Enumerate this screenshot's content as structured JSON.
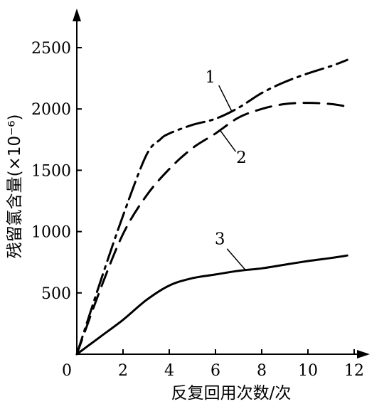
{
  "chart_data": {
    "type": "line",
    "title": "",
    "xlabel": "反复回用次数/次",
    "ylabel": "残留氯含量(×10⁻⁶)",
    "xlim": [
      0,
      13
    ],
    "ylim": [
      0,
      2800
    ],
    "x_ticks": [
      0,
      2,
      4,
      6,
      8,
      10,
      12
    ],
    "x_tick_labels": [
      "0",
      "2",
      "4",
      "6",
      "8",
      "10",
      "12"
    ],
    "y_ticks": [
      500,
      1000,
      1500,
      2000,
      2500
    ],
    "y_tick_labels": [
      "500",
      "1000",
      "1500",
      "2000",
      "2500"
    ],
    "grid": false,
    "legend": "none",
    "series": [
      {
        "name": "1",
        "style": "dash-dot",
        "x": [
          0,
          1,
          2,
          3,
          3.6,
          4,
          5,
          6,
          7,
          8,
          9,
          10,
          11,
          11.7
        ],
        "y": [
          0,
          580,
          1130,
          1620,
          1750,
          1800,
          1870,
          1920,
          2010,
          2130,
          2220,
          2290,
          2350,
          2400
        ]
      },
      {
        "name": "2",
        "style": "dashed",
        "x": [
          0,
          1,
          2,
          3,
          4,
          5,
          6,
          7,
          8,
          9,
          10,
          11,
          11.7
        ],
        "y": [
          0,
          520,
          980,
          1290,
          1510,
          1680,
          1800,
          1930,
          2000,
          2040,
          2050,
          2040,
          2020
        ]
      },
      {
        "name": "3",
        "style": "solid",
        "x": [
          0,
          1,
          2,
          3,
          4,
          5,
          6,
          7,
          8,
          9,
          10,
          11,
          11.7
        ],
        "y": [
          0,
          140,
          280,
          440,
          560,
          620,
          650,
          680,
          700,
          730,
          760,
          785,
          805
        ]
      }
    ],
    "curve_labels": [
      {
        "text": "1",
        "series": "1"
      },
      {
        "text": "2",
        "series": "2"
      },
      {
        "text": "3",
        "series": "3"
      }
    ]
  }
}
